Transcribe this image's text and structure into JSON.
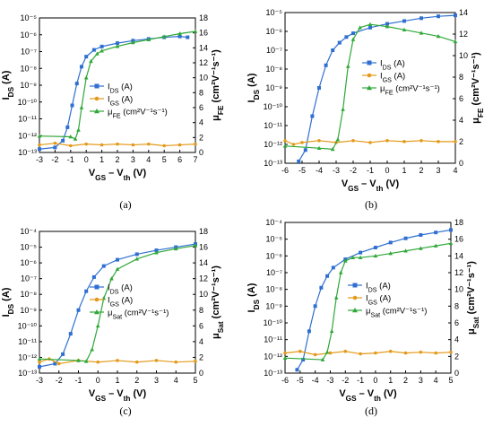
{
  "colors": {
    "ids": "#2f6fd1",
    "igs": "#e39a1a",
    "mu": "#2fa838",
    "axis": "#000000"
  },
  "chart_data": [
    {
      "type": "line",
      "caption": "(a)",
      "xlabel": "V GS – V th (V)",
      "xlabel_main": "V",
      "xlabel_sub1": "GS",
      "xlabel_mid": " – V",
      "xlabel_sub2": "th",
      "xlabel_end": " (V)",
      "ylabel_left": {
        "main": "I",
        "sub": "DS",
        "end": " (A)"
      },
      "ylabel_right": {
        "main": "μ",
        "sub": "FE",
        "end": " (cm²V⁻¹s⁻¹)"
      },
      "xlim": [
        -3,
        7
      ],
      "xticks": [
        "-3",
        "-2",
        "-1",
        "0",
        "1",
        "2",
        "3",
        "4",
        "5",
        "6",
        "7"
      ],
      "left_log_lim": [
        -13,
        -5
      ],
      "left_ticks": [
        "10⁻¹³",
        "10⁻¹²",
        "10⁻¹¹",
        "10⁻¹⁰",
        "10⁻⁹",
        "10⁻⁸",
        "10⁻⁷",
        "10⁻⁶",
        "10⁻⁵"
      ],
      "right_lim": [
        0,
        18
      ],
      "right_ticks": [
        "0",
        "2",
        "4",
        "6",
        "8",
        "10",
        "12",
        "14",
        "16",
        "18"
      ],
      "legend": [
        {
          "main": "I",
          "sub": "DS",
          "end": " (A)"
        },
        {
          "main": "I",
          "sub": "GS",
          "end": " (A)"
        },
        {
          "main": "μ",
          "sub": "FE",
          "end": " (cm²V⁻¹s⁻¹)"
        }
      ],
      "series": [
        {
          "name": "IDS (A)",
          "axis": "left-log",
          "points": [
            [
              -3,
              -12.8
            ],
            [
              -2,
              -12.7
            ],
            [
              -1.5,
              -12.3
            ],
            [
              -1.2,
              -11.5
            ],
            [
              -0.9,
              -10.2
            ],
            [
              -0.6,
              -8.9
            ],
            [
              -0.3,
              -7.9
            ],
            [
              0,
              -7.3
            ],
            [
              0.5,
              -6.9
            ],
            [
              1,
              -6.7
            ],
            [
              2,
              -6.5
            ],
            [
              3,
              -6.35
            ],
            [
              4,
              -6.25
            ],
            [
              5,
              -6.15
            ],
            [
              6,
              -6.1
            ],
            [
              6.5,
              -6.15
            ]
          ]
        },
        {
          "name": "IGS (A)",
          "axis": "left-log",
          "points": [
            [
              -3,
              -12.55
            ],
            [
              -2,
              -12.45
            ],
            [
              -1,
              -12.6
            ],
            [
              0,
              -12.5
            ],
            [
              1,
              -12.55
            ],
            [
              2,
              -12.5
            ],
            [
              3,
              -12.55
            ],
            [
              4,
              -12.5
            ],
            [
              5,
              -12.6
            ],
            [
              6,
              -12.55
            ],
            [
              7,
              -12.5
            ]
          ]
        },
        {
          "name": "μFE (cm²V⁻¹s⁻¹)",
          "axis": "right",
          "points": [
            [
              -3,
              2.2
            ],
            [
              -1,
              2.1
            ],
            [
              -0.7,
              1.8
            ],
            [
              -0.5,
              3
            ],
            [
              -0.3,
              6
            ],
            [
              0,
              10
            ],
            [
              0.3,
              12.2
            ],
            [
              0.7,
              13.2
            ],
            [
              1,
              13.6
            ],
            [
              2,
              14.2
            ],
            [
              3,
              14.7
            ],
            [
              4,
              15.1
            ],
            [
              5,
              15.5
            ],
            [
              6,
              15.9
            ],
            [
              7,
              16.2
            ]
          ]
        }
      ]
    },
    {
      "type": "line",
      "caption": "(b)",
      "xlabel_main": "V",
      "xlabel_sub1": "GS",
      "xlabel_mid": " – V",
      "xlabel_sub2": "th",
      "xlabel_end": " (V)",
      "ylabel_left": {
        "main": "I",
        "sub": "DS",
        "end": " (A)"
      },
      "ylabel_right": {
        "main": "μ",
        "sub": "FE",
        "end": " (cm²V⁻¹s⁻¹)"
      },
      "xlim": [
        -6,
        4
      ],
      "xticks": [
        "-6",
        "-5",
        "-4",
        "-3",
        "-2",
        "-1",
        "0",
        "1",
        "2",
        "3",
        "4"
      ],
      "left_log_lim": [
        -13,
        -5
      ],
      "left_ticks": [
        "10⁻¹³",
        "10⁻¹²",
        "10⁻¹¹",
        "10⁻¹⁰",
        "10⁻⁹",
        "10⁻⁸",
        "10⁻⁷",
        "10⁻⁶",
        "10⁻⁵"
      ],
      "right_lim": [
        0,
        14
      ],
      "right_ticks": [
        "0",
        "2",
        "4",
        "6",
        "8",
        "10",
        "12",
        "14"
      ],
      "legend": [
        {
          "main": "I",
          "sub": "DS",
          "end": " (A)"
        },
        {
          "main": "I",
          "sub": "GS",
          "end": " (A)"
        },
        {
          "main": "μ",
          "sub": "FE",
          "end": " (cm²V⁻¹s⁻¹)"
        }
      ],
      "series": [
        {
          "name": "IDS (A)",
          "axis": "left-log",
          "points": [
            [
              -5.2,
              -12.9
            ],
            [
              -4.8,
              -12.3
            ],
            [
              -4.4,
              -10.5
            ],
            [
              -4,
              -9
            ],
            [
              -3.6,
              -7.8
            ],
            [
              -3.2,
              -7
            ],
            [
              -2.8,
              -6.6
            ],
            [
              -2.4,
              -6.3
            ],
            [
              -2,
              -6.1
            ],
            [
              -1,
              -5.8
            ],
            [
              0,
              -5.6
            ],
            [
              1,
              -5.45
            ],
            [
              2,
              -5.3
            ],
            [
              3,
              -5.2
            ],
            [
              4,
              -5.15
            ]
          ]
        },
        {
          "name": "IGS (A)",
          "axis": "left-log",
          "points": [
            [
              -6,
              -11.8
            ],
            [
              -5.5,
              -12
            ],
            [
              -5,
              -11.9
            ],
            [
              -4,
              -11.8
            ],
            [
              -3,
              -11.9
            ],
            [
              -2,
              -11.8
            ],
            [
              -1,
              -11.9
            ],
            [
              0,
              -11.8
            ],
            [
              1,
              -11.85
            ],
            [
              2,
              -11.8
            ],
            [
              3,
              -11.85
            ],
            [
              4,
              -11.85
            ]
          ]
        },
        {
          "name": "μFE (cm²V⁻¹s⁻¹)",
          "axis": "right",
          "points": [
            [
              -6,
              1.6
            ],
            [
              -4,
              1.4
            ],
            [
              -3.2,
              1.3
            ],
            [
              -2.9,
              2.2
            ],
            [
              -2.6,
              5
            ],
            [
              -2.3,
              9
            ],
            [
              -2,
              11.5
            ],
            [
              -1.6,
              12.6
            ],
            [
              -1,
              12.9
            ],
            [
              0,
              12.7
            ],
            [
              1,
              12.4
            ],
            [
              2,
              12.1
            ],
            [
              3,
              11.8
            ],
            [
              4,
              11.3
            ]
          ]
        }
      ]
    },
    {
      "type": "line",
      "caption": "(c)",
      "xlabel_main": "V",
      "xlabel_sub1": "GS",
      "xlabel_mid": " – V",
      "xlabel_sub2": "th",
      "xlabel_end": " (V)",
      "ylabel_left": {
        "main": "I",
        "sub": "DS",
        "end": " (A)"
      },
      "ylabel_right": {
        "main": "μ",
        "sub": "Sat",
        "end": " (cm²V⁻¹s⁻¹)"
      },
      "xlim": [
        -3,
        5
      ],
      "xticks": [
        "-3",
        "-2",
        "-1",
        "0",
        "1",
        "2",
        "3",
        "4",
        "5"
      ],
      "left_log_lim": [
        -13,
        -4
      ],
      "left_ticks": [
        "10⁻¹³",
        "10⁻¹²",
        "10⁻¹¹",
        "10⁻¹⁰",
        "10⁻⁹",
        "10⁻⁸",
        "10⁻⁷",
        "10⁻⁶",
        "10⁻⁵",
        "10⁻⁴"
      ],
      "right_lim": [
        0,
        18
      ],
      "right_ticks": [
        "0",
        "2",
        "4",
        "6",
        "8",
        "10",
        "12",
        "14",
        "16",
        "18"
      ],
      "legend": [
        {
          "main": "I",
          "sub": "DS",
          "end": " (A)"
        },
        {
          "main": "I",
          "sub": "GS",
          "end": " (A)"
        },
        {
          "main": "μ",
          "sub": "Sat",
          "end": " (cm²V⁻¹s⁻¹)"
        }
      ],
      "series": [
        {
          "name": "IDS (A)",
          "axis": "left-log",
          "points": [
            [
              -3,
              -12.6
            ],
            [
              -2.2,
              -12.4
            ],
            [
              -1.8,
              -11.8
            ],
            [
              -1.4,
              -10.5
            ],
            [
              -1,
              -9
            ],
            [
              -0.6,
              -7.8
            ],
            [
              -0.2,
              -6.9
            ],
            [
              0.3,
              -6.2
            ],
            [
              1,
              -5.8
            ],
            [
              2,
              -5.45
            ],
            [
              3,
              -5.2
            ],
            [
              4,
              -5
            ],
            [
              5,
              -4.8
            ]
          ]
        },
        {
          "name": "IGS (A)",
          "axis": "left-log",
          "points": [
            [
              -3,
              -12.3
            ],
            [
              -2.5,
              -12.1
            ],
            [
              -2,
              -12.4
            ],
            [
              -1,
              -12.2
            ],
            [
              0,
              -12.3
            ],
            [
              1,
              -12.2
            ],
            [
              2,
              -12.3
            ],
            [
              3,
              -12.2
            ],
            [
              4,
              -12.3
            ],
            [
              5,
              -12.25
            ]
          ]
        },
        {
          "name": "μSat (cm²V⁻¹s⁻¹)",
          "axis": "right",
          "points": [
            [
              -3,
              1.8
            ],
            [
              -1,
              1.6
            ],
            [
              -0.6,
              1.5
            ],
            [
              -0.3,
              3
            ],
            [
              0,
              6
            ],
            [
              0.3,
              9.5
            ],
            [
              0.7,
              12
            ],
            [
              1,
              13.2
            ],
            [
              2,
              14.5
            ],
            [
              3,
              15.3
            ],
            [
              4,
              15.8
            ],
            [
              5,
              16.2
            ]
          ]
        }
      ]
    },
    {
      "type": "line",
      "caption": "(d)",
      "xlabel_main": "V",
      "xlabel_sub1": "GS",
      "xlabel_mid": " – V",
      "xlabel_sub2": "th",
      "xlabel_end": " (V)",
      "ylabel_left": {
        "main": "I",
        "sub": "DS",
        "end": " (A)"
      },
      "ylabel_right": {
        "main": "μ",
        "sub": "Sat",
        "end": " (cm²V⁻¹s⁻¹)"
      },
      "xlim": [
        -6,
        5
      ],
      "xticks": [
        "-6",
        "-5",
        "-4",
        "-3",
        "-2",
        "-1",
        "0",
        "1",
        "2",
        "3",
        "4",
        "5"
      ],
      "left_log_lim": [
        -13,
        -4
      ],
      "left_ticks": [
        "10⁻¹³",
        "10⁻¹²",
        "10⁻¹¹",
        "10⁻¹⁰",
        "10⁻⁹",
        "10⁻⁸",
        "10⁻⁷",
        "10⁻⁶",
        "10⁻⁵",
        "10⁻⁴"
      ],
      "right_lim": [
        0,
        18
      ],
      "right_ticks": [
        "0",
        "2",
        "4",
        "6",
        "8",
        "10",
        "12",
        "14",
        "16",
        "18"
      ],
      "legend": [
        {
          "main": "I",
          "sub": "DS",
          "end": " (A)"
        },
        {
          "main": "I",
          "sub": "GS",
          "end": " (A)"
        },
        {
          "main": "μ",
          "sub": "Sat",
          "end": " (cm²V⁻¹s⁻¹)"
        }
      ],
      "series": [
        {
          "name": "IDS (A)",
          "axis": "left-log",
          "points": [
            [
              -5.2,
              -12.8
            ],
            [
              -4.8,
              -12.2
            ],
            [
              -4.4,
              -10.5
            ],
            [
              -4,
              -9
            ],
            [
              -3.6,
              -7.9
            ],
            [
              -3.2,
              -7.2
            ],
            [
              -2.8,
              -6.7
            ],
            [
              -2,
              -6.2
            ],
            [
              -1,
              -5.8
            ],
            [
              0,
              -5.5
            ],
            [
              1,
              -5.2
            ],
            [
              2,
              -4.95
            ],
            [
              3,
              -4.75
            ],
            [
              4,
              -4.6
            ],
            [
              5,
              -4.45
            ]
          ]
        },
        {
          "name": "IGS (A)",
          "axis": "left-log",
          "points": [
            [
              -6,
              -11.8
            ],
            [
              -5,
              -11.7
            ],
            [
              -4,
              -11.9
            ],
            [
              -3,
              -11.8
            ],
            [
              -2,
              -11.7
            ],
            [
              -1,
              -11.85
            ],
            [
              0,
              -11.8
            ],
            [
              1,
              -11.7
            ],
            [
              2,
              -11.8
            ],
            [
              3,
              -11.75
            ],
            [
              4,
              -11.8
            ],
            [
              5,
              -11.75
            ]
          ]
        },
        {
          "name": "μSat (cm²V⁻¹s⁻¹)",
          "axis": "right",
          "points": [
            [
              -6,
              1.8
            ],
            [
              -3.5,
              1.6
            ],
            [
              -3.2,
              2.5
            ],
            [
              -2.9,
              5
            ],
            [
              -2.6,
              9
            ],
            [
              -2.3,
              12
            ],
            [
              -2,
              13.4
            ],
            [
              -1.5,
              13.8
            ],
            [
              -1,
              13.8
            ],
            [
              0,
              14
            ],
            [
              1,
              14.3
            ],
            [
              2,
              14.6
            ],
            [
              3,
              14.9
            ],
            [
              4,
              15.2
            ],
            [
              5,
              15.5
            ]
          ]
        }
      ]
    }
  ]
}
